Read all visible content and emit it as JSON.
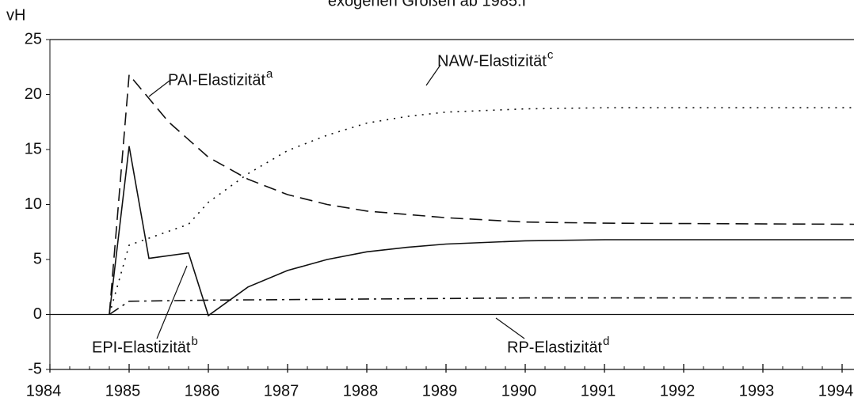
{
  "chart_data": {
    "type": "line",
    "title": "exogenen Größen ab 1985:I",
    "y_label": "vH",
    "xlim": [
      1984,
      1994.15
    ],
    "xticks": [
      1984,
      1985,
      1986,
      1987,
      1988,
      1989,
      1990,
      1991,
      1992,
      1993,
      1994
    ],
    "ylim": [
      -5,
      25
    ],
    "yticks": [
      -5,
      0,
      5,
      10,
      15,
      20,
      25
    ],
    "series": [
      {
        "name": "PAI-Elastizität",
        "superscript": "a",
        "color": "#111111",
        "dash": "dashed",
        "x": [
          1984.75,
          1985,
          1985.5,
          1986,
          1986.5,
          1987,
          1987.5,
          1988,
          1989,
          1990,
          1991,
          1994.15
        ],
        "values": [
          0,
          21.8,
          17.5,
          14.3,
          12.3,
          10.9,
          10.0,
          9.4,
          8.8,
          8.4,
          8.3,
          8.2
        ]
      },
      {
        "name": "NAW-Elastizität",
        "superscript": "c",
        "color": "#111111",
        "dash": "dotted",
        "x": [
          1984.75,
          1985,
          1985.75,
          1986,
          1986.5,
          1987,
          1987.5,
          1988,
          1988.5,
          1989,
          1990,
          1991,
          1994.15
        ],
        "values": [
          0,
          6.3,
          8.2,
          10.2,
          12.8,
          14.9,
          16.3,
          17.4,
          18.0,
          18.4,
          18.7,
          18.8,
          18.8
        ]
      },
      {
        "name": "EPI-Elastizität",
        "superscript": "b",
        "color": "#111111",
        "dash": "solid",
        "x": [
          1984.75,
          1985,
          1985.25,
          1985.75,
          1986,
          1986.5,
          1987,
          1987.5,
          1988,
          1988.5,
          1989,
          1990,
          1991,
          1994.15
        ],
        "values": [
          0,
          15.3,
          5.1,
          5.6,
          -0.1,
          2.5,
          4.0,
          5.0,
          5.7,
          6.1,
          6.4,
          6.7,
          6.8,
          6.8
        ]
      },
      {
        "name": "RP-Elastizität",
        "superscript": "d",
        "color": "#111111",
        "dash": "dashdot",
        "x": [
          1984.75,
          1985,
          1986,
          1990,
          1994.15
        ],
        "values": [
          0,
          1.2,
          1.3,
          1.5,
          1.5
        ]
      }
    ]
  }
}
